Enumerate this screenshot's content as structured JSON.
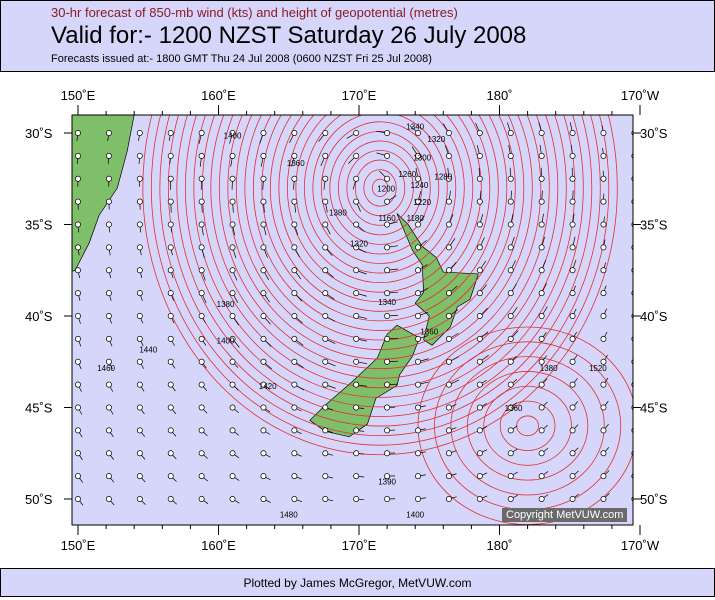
{
  "header": {
    "subtitle": "30-hr forecast of 850-mb wind (kts) and height of geopotential (metres)",
    "title": "Valid for:- 1200 NZST Saturday 26 July 2008",
    "issued": "Forecasts issued at:- 1800 GMT Thu 24 Jul 2008 (0600 NZST Fri 25 Jul 2008)"
  },
  "map": {
    "lon_labels": [
      "150˚E",
      "160˚E",
      "170˚E",
      "180˚",
      "170˚W"
    ],
    "lat_labels": [
      "30˚S",
      "35˚S",
      "40˚S",
      "45˚S",
      "50˚S"
    ],
    "extent": {
      "lon": [
        150,
        190
      ],
      "lat": [
        -51.5,
        -29
      ]
    },
    "low_center": {
      "lon": 171.5,
      "lat": -33
    },
    "high_center": {
      "lon": 182,
      "lat": -46
    },
    "contour_labels": [
      {
        "text": "1340",
        "lon": 174,
        "lat": -29.8
      },
      {
        "text": "1320",
        "lon": 175.5,
        "lat": -30.5
      },
      {
        "text": "1300",
        "lon": 174.5,
        "lat": -31.5
      },
      {
        "text": "1280",
        "lon": 176,
        "lat": -32
      },
      {
        "text": "1260",
        "lon": 175,
        "lat": -32.4
      },
      {
        "text": "1240",
        "lon": 174.3,
        "lat": -33
      },
      {
        "text": "1220",
        "lon": 174.5,
        "lat": -33.4
      },
      {
        "text": "1200",
        "lon": 173.5,
        "lat": -33.2
      },
      {
        "text": "1180",
        "lon": 174,
        "lat": -34.8
      },
      {
        "text": "1160",
        "lon": 172,
        "lat": -34.8
      },
      {
        "text": "1380",
        "lon": 168.5,
        "lat": -34.5
      },
      {
        "text": "1320",
        "lon": 170,
        "lat": -36.2
      },
      {
        "text": "1360",
        "lon": 165.5,
        "lat": -31.8
      },
      {
        "text": "1400",
        "lon": 161,
        "lat": -30.3
      },
      {
        "text": "1380",
        "lon": 160.5,
        "lat": -39.5
      },
      {
        "text": "1400",
        "lon": 160.5,
        "lat": -41.5
      },
      {
        "text": "1420",
        "lon": 163.5,
        "lat": -44
      },
      {
        "text": "1440",
        "lon": 155,
        "lat": -42
      },
      {
        "text": "1460",
        "lon": 152,
        "lat": -43
      },
      {
        "text": "1340",
        "lon": 172,
        "lat": -39.4
      },
      {
        "text": "1360",
        "lon": 175,
        "lat": -41
      },
      {
        "text": "1380",
        "lon": 183.5,
        "lat": -43
      },
      {
        "text": "1360",
        "lon": 181,
        "lat": -45.2
      },
      {
        "text": "1520",
        "lon": 187,
        "lat": -43
      },
      {
        "text": "1390",
        "lon": 172,
        "lat": -49.2
      },
      {
        "text": "1400",
        "lon": 174,
        "lat": -51
      },
      {
        "text": "1480",
        "lon": 165,
        "lat": -51
      }
    ],
    "colors": {
      "ocean": "#d6d6fa",
      "contour": "#e03030",
      "land": "#7fbf6a",
      "barb": "#000000"
    }
  },
  "copyright": "Copyright MetVUW.com",
  "footer": "Plotted by James McGregor, MetVUW.com"
}
